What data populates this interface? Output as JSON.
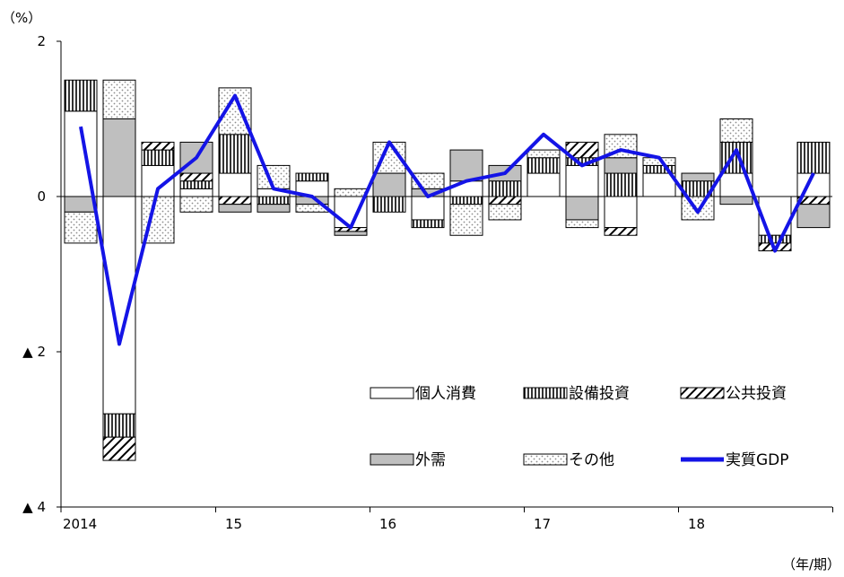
{
  "chart_data": {
    "type": "bar",
    "stacked": true,
    "yunit": "（%）",
    "xunit": "（年/期）",
    "ylim": [
      -4,
      2
    ],
    "yticks": [
      {
        "value": 2,
        "label": "2"
      },
      {
        "value": 0,
        "label": "0"
      },
      {
        "value": -2,
        "label": "▲ 2"
      },
      {
        "value": -4,
        "label": "▲ 4"
      }
    ],
    "xlabels": [
      {
        "index": 0,
        "label": "2014"
      },
      {
        "index": 4,
        "label": "15"
      },
      {
        "index": 8,
        "label": "16"
      },
      {
        "index": 12,
        "label": "17"
      },
      {
        "index": 16,
        "label": "18"
      }
    ],
    "categories": [
      "2014 Q1",
      "2014 Q2",
      "2014 Q3",
      "2014 Q4",
      "2015 Q1",
      "2015 Q2",
      "2015 Q3",
      "2015 Q4",
      "2016 Q1",
      "2016 Q2",
      "2016 Q3",
      "2016 Q4",
      "2017 Q1",
      "2017 Q2",
      "2017 Q3",
      "2017 Q4",
      "2018 Q1",
      "2018 Q2",
      "2018 Q3",
      "2018 Q4"
    ],
    "grid": false,
    "legend_position": "bottom-right",
    "series": [
      {
        "name": "個人消費",
        "type": "bar",
        "pattern": "plain",
        "values": [
          1.1,
          -2.8,
          0.4,
          0.1,
          0.3,
          0.1,
          0.2,
          -0.4,
          0.0,
          -0.3,
          0.2,
          0.0,
          0.3,
          0.4,
          -0.4,
          0.3,
          0.0,
          0.3,
          -0.5,
          0.3
        ]
      },
      {
        "name": "設備投資",
        "type": "bar",
        "pattern": "vertical",
        "values": [
          0.4,
          -0.3,
          0.2,
          0.1,
          0.5,
          -0.1,
          0.1,
          0.0,
          -0.2,
          -0.1,
          -0.1,
          0.2,
          0.2,
          0.1,
          0.3,
          0.1,
          0.2,
          0.4,
          -0.1,
          0.4
        ]
      },
      {
        "name": "公共投資",
        "type": "bar",
        "pattern": "diagonal",
        "values": [
          0.0,
          -0.3,
          0.1,
          0.1,
          -0.1,
          0.0,
          0.0,
          -0.05,
          0.0,
          0.0,
          0.0,
          -0.1,
          0.0,
          0.2,
          -0.1,
          0.0,
          0.0,
          0.0,
          -0.1,
          -0.1
        ]
      },
      {
        "name": "外需",
        "type": "bar",
        "pattern": "solid",
        "values": [
          -0.2,
          1.0,
          0.0,
          0.4,
          -0.1,
          -0.1,
          -0.1,
          -0.05,
          0.3,
          0.1,
          0.4,
          0.2,
          0.0,
          -0.3,
          0.2,
          0.0,
          0.1,
          -0.1,
          0.0,
          -0.3
        ]
      },
      {
        "name": "その他",
        "type": "bar",
        "pattern": "dots",
        "values": [
          -0.4,
          0.5,
          -0.6,
          -0.2,
          0.6,
          0.3,
          -0.1,
          0.1,
          0.4,
          0.2,
          -0.4,
          -0.2,
          0.1,
          -0.1,
          0.3,
          0.1,
          -0.3,
          0.3,
          0.0,
          0.0
        ]
      },
      {
        "name": "実質GDP",
        "type": "line",
        "values": [
          0.9,
          -1.9,
          0.1,
          0.5,
          1.3,
          0.1,
          0.0,
          -0.4,
          0.7,
          0.0,
          0.2,
          0.3,
          0.8,
          0.4,
          0.6,
          0.5,
          -0.2,
          0.6,
          -0.7,
          0.3
        ]
      }
    ],
    "colors": {
      "bar_fill": "#ffffff",
      "bar_stroke": "#000000",
      "outside_demand": "#bfbfbf",
      "line": "#1414e6",
      "dots": "#8c8c8c"
    }
  }
}
